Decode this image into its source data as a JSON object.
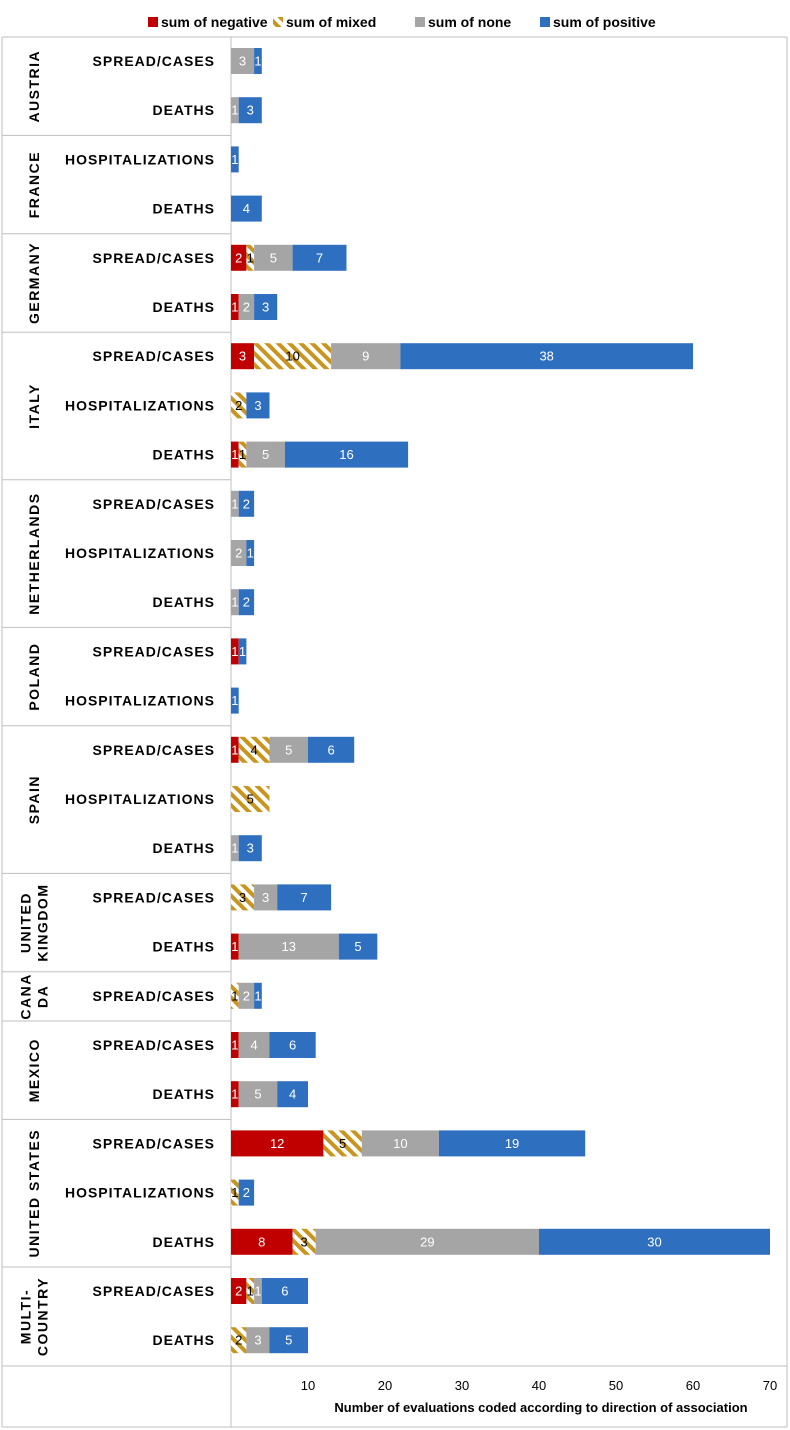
{
  "chart_data": {
    "type": "bar",
    "orientation": "horizontal",
    "stacked": true,
    "xlabel": "Number of evaluations coded according to direction of association",
    "xlim": [
      0,
      70
    ],
    "xticks": [
      10,
      20,
      30,
      40,
      50,
      60,
      70
    ],
    "grid": false,
    "legend_position": "top",
    "series": [
      {
        "name": "sum of negative",
        "color": "#c00000",
        "pattern": "solid"
      },
      {
        "name": "sum of mixed",
        "color": "#c8961e",
        "pattern": "diagonal-stripes"
      },
      {
        "name": "sum of none",
        "color": "#a5a5a5",
        "pattern": "solid"
      },
      {
        "name": "sum of positive",
        "color": "#2f6fc0",
        "pattern": "solid"
      }
    ],
    "groups": [
      {
        "country": "AUSTRIA",
        "country_lines": [
          "AUSTRIA"
        ],
        "rows": [
          {
            "metric": "SPREAD/CASES",
            "values": [
              0,
              0,
              3,
              1
            ]
          },
          {
            "metric": "DEATHS",
            "values": [
              0,
              0,
              1,
              3
            ]
          }
        ]
      },
      {
        "country": "FRANCE",
        "country_lines": [
          "FRANCE"
        ],
        "rows": [
          {
            "metric": "HOSPITALIZATIONS",
            "values": [
              0,
              0,
              0,
              1
            ]
          },
          {
            "metric": "DEATHS",
            "values": [
              0,
              0,
              0,
              4
            ]
          }
        ]
      },
      {
        "country": "GERMANY",
        "country_lines": [
          "GERMANY"
        ],
        "rows": [
          {
            "metric": "SPREAD/CASES",
            "values": [
              2,
              1,
              5,
              7
            ]
          },
          {
            "metric": "DEATHS",
            "values": [
              1,
              0,
              2,
              3
            ]
          }
        ]
      },
      {
        "country": "ITALY",
        "country_lines": [
          "ITALY"
        ],
        "rows": [
          {
            "metric": "SPREAD/CASES",
            "values": [
              3,
              10,
              9,
              38
            ]
          },
          {
            "metric": "HOSPITALIZATIONS",
            "values": [
              0,
              2,
              0,
              3
            ]
          },
          {
            "metric": "DEATHS",
            "values": [
              1,
              1,
              5,
              16
            ]
          }
        ]
      },
      {
        "country": "NETHERLANDS",
        "country_lines": [
          "NETHERLANDS"
        ],
        "rows": [
          {
            "metric": "SPREAD/CASES",
            "values": [
              0,
              0,
              1,
              2
            ]
          },
          {
            "metric": "HOSPITALIZATIONS",
            "values": [
              0,
              0,
              2,
              1
            ]
          },
          {
            "metric": "DEATHS",
            "values": [
              0,
              0,
              1,
              2
            ]
          }
        ]
      },
      {
        "country": "POLAND",
        "country_lines": [
          "POLAND"
        ],
        "rows": [
          {
            "metric": "SPREAD/CASES",
            "values": [
              1,
              0,
              0,
              1
            ]
          },
          {
            "metric": "HOSPITALIZATIONS",
            "values": [
              0,
              0,
              0,
              1
            ]
          }
        ]
      },
      {
        "country": "SPAIN",
        "country_lines": [
          "SPAIN"
        ],
        "rows": [
          {
            "metric": "SPREAD/CASES",
            "values": [
              1,
              4,
              5,
              6
            ]
          },
          {
            "metric": "HOSPITALIZATIONS",
            "values": [
              0,
              5,
              0,
              0
            ]
          },
          {
            "metric": "DEATHS",
            "values": [
              0,
              0,
              1,
              3
            ]
          }
        ]
      },
      {
        "country": "UNITED KINGDOM",
        "country_lines": [
          "UNITED",
          "KINGDOM"
        ],
        "rows": [
          {
            "metric": "SPREAD/CASES",
            "values": [
              0,
              3,
              3,
              7
            ]
          },
          {
            "metric": "DEATHS",
            "values": [
              1,
              0,
              13,
              5
            ]
          }
        ]
      },
      {
        "country": "CANADA",
        "country_lines": [
          "CANA",
          "DA"
        ],
        "rows": [
          {
            "metric": "SPREAD/CASES",
            "values": [
              0,
              1,
              2,
              1
            ]
          }
        ]
      },
      {
        "country": "MEXICO",
        "country_lines": [
          "MEXICO"
        ],
        "rows": [
          {
            "metric": "SPREAD/CASES",
            "values": [
              1,
              0,
              4,
              6
            ]
          },
          {
            "metric": "DEATHS",
            "values": [
              1,
              0,
              5,
              4
            ]
          }
        ]
      },
      {
        "country": "UNITED STATES",
        "country_lines": [
          "UNITED STATES"
        ],
        "rows": [
          {
            "metric": "SPREAD/CASES",
            "values": [
              12,
              5,
              10,
              19
            ]
          },
          {
            "metric": "HOSPITALIZATIONS",
            "values": [
              0,
              1,
              0,
              2
            ]
          },
          {
            "metric": "DEATHS",
            "values": [
              8,
              3,
              29,
              30
            ]
          }
        ]
      },
      {
        "country": "MULTI-COUNTRY",
        "country_lines": [
          "MULTI-",
          "COUNTRY"
        ],
        "rows": [
          {
            "metric": "SPREAD/CASES",
            "values": [
              2,
              1,
              1,
              6
            ]
          },
          {
            "metric": "DEATHS",
            "values": [
              0,
              2,
              3,
              5
            ]
          }
        ]
      }
    ]
  }
}
